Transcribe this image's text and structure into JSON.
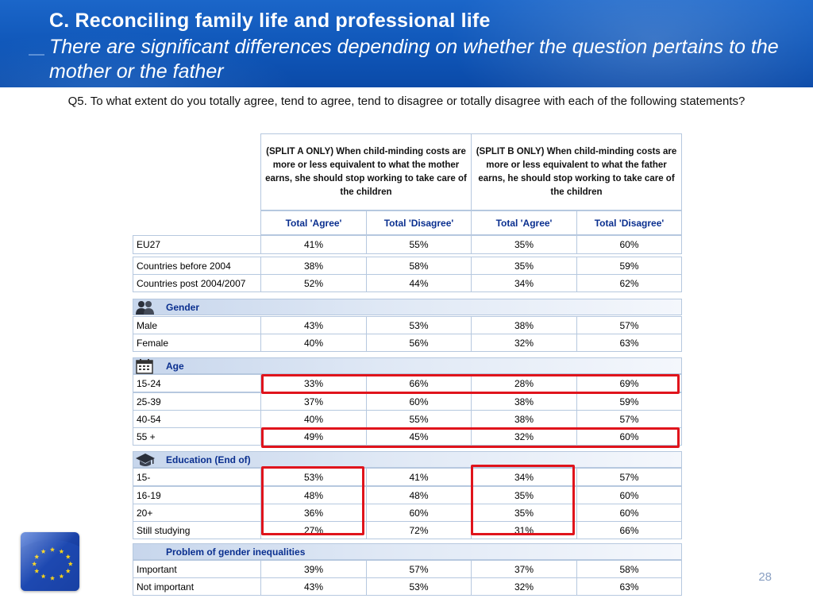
{
  "header": {
    "title": "C. Reconciling family life and professional life",
    "subtitle": "There are significant differences depending on whether the question pertains to the mother or the father"
  },
  "question": "Q5. To what extent do you totally agree, tend to agree, tend to disagree or totally disagree with each of the following statements?",
  "table": {
    "groups": [
      "(SPLIT A ONLY) When child-minding costs are more or less equivalent to what the mother earns, she should stop working to take care of the children",
      "(SPLIT B ONLY) When child-minding costs are more or less equivalent to what the father earns, he should stop working to take care of the children"
    ],
    "columns": [
      "Total 'Agree'",
      "Total 'Disagree'",
      "Total 'Agree'",
      "Total 'Disagree'"
    ],
    "eu": [
      {
        "label": "EU27",
        "values": [
          "41%",
          "55%",
          "35%",
          "60%"
        ]
      }
    ],
    "countries": [
      {
        "label": "Countries before 2004",
        "values": [
          "38%",
          "58%",
          "35%",
          "59%"
        ]
      },
      {
        "label": "Countries post 2004/2007",
        "values": [
          "52%",
          "44%",
          "34%",
          "62%"
        ]
      }
    ],
    "sections": [
      {
        "title": "Gender",
        "icon": "people-icon",
        "rows": [
          {
            "label": "Male",
            "values": [
              "43%",
              "53%",
              "38%",
              "57%"
            ]
          },
          {
            "label": "Female",
            "values": [
              "40%",
              "56%",
              "32%",
              "63%"
            ]
          }
        ]
      },
      {
        "title": "Age",
        "icon": "calendar-icon",
        "rows": [
          {
            "label": "15-24",
            "values": [
              "33%",
              "66%",
              "28%",
              "69%"
            ]
          },
          {
            "label": "25-39",
            "values": [
              "37%",
              "60%",
              "38%",
              "59%"
            ]
          },
          {
            "label": "40-54",
            "values": [
              "40%",
              "55%",
              "38%",
              "57%"
            ]
          },
          {
            "label": "55 +",
            "values": [
              "49%",
              "45%",
              "32%",
              "60%"
            ]
          }
        ]
      },
      {
        "title": "Education (End of)",
        "icon": "graduation-cap-icon",
        "rows": [
          {
            "label": "15-",
            "values": [
              "53%",
              "41%",
              "34%",
              "57%"
            ]
          },
          {
            "label": "16-19",
            "values": [
              "48%",
              "48%",
              "35%",
              "60%"
            ]
          },
          {
            "label": "20+",
            "values": [
              "36%",
              "60%",
              "35%",
              "60%"
            ]
          },
          {
            "label": "Still studying",
            "values": [
              "27%",
              "72%",
              "31%",
              "66%"
            ]
          }
        ]
      },
      {
        "title": "Problem of gender inequalities",
        "icon": "",
        "rows": [
          {
            "label": "Important",
            "values": [
              "39%",
              "57%",
              "37%",
              "58%"
            ]
          },
          {
            "label": "Not important",
            "values": [
              "43%",
              "53%",
              "32%",
              "63%"
            ]
          }
        ]
      }
    ]
  },
  "page_number": "28",
  "colors": {
    "header_blue": "#0f56b8",
    "highlight_red": "#e0141c",
    "section_text": "#0a2f8f",
    "grid": "#b6c8df"
  }
}
